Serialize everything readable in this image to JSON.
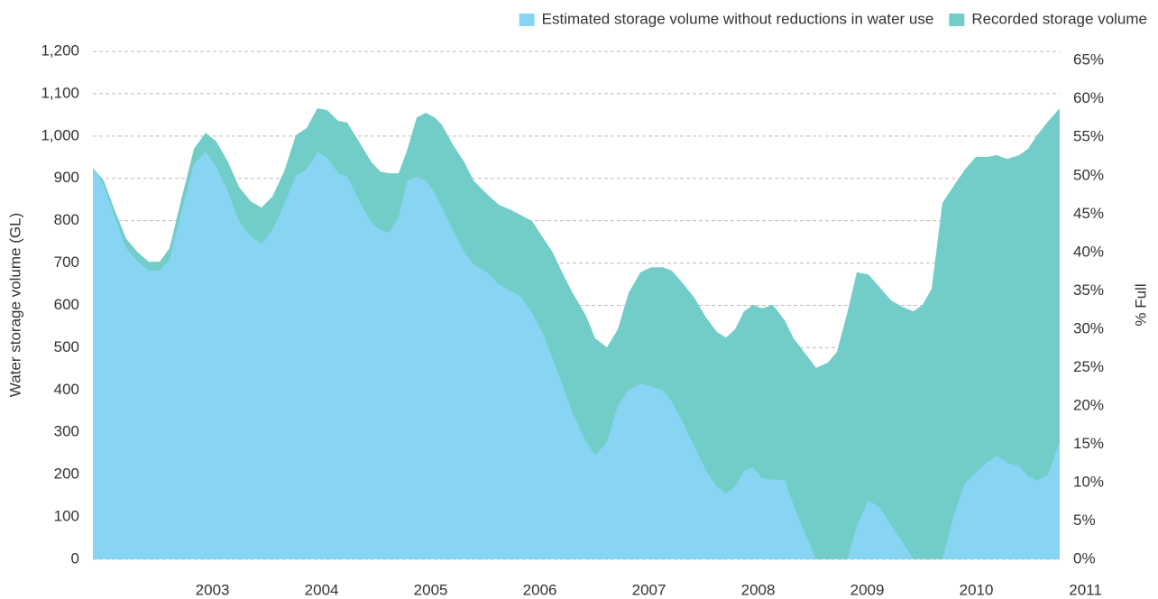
{
  "chart_data": {
    "type": "area",
    "y_label": "Water storage volume (GL)",
    "y2_label": "% Full",
    "x": [
      2002.4,
      2002.499,
      2002.607,
      2002.706,
      2002.813,
      2002.912,
      2003.012,
      2003.102,
      2003.202,
      2003.326,
      2003.433,
      2003.532,
      2003.64,
      2003.739,
      2003.846,
      2003.945,
      2004.045,
      2004.152,
      2004.26,
      2004.359,
      2004.458,
      2004.549,
      2004.648,
      2004.731,
      2004.838,
      2004.954,
      2005.036,
      2005.119,
      2005.202,
      2005.284,
      2005.367,
      2005.45,
      2005.532,
      2005.598,
      2005.698,
      2005.805,
      2005.888,
      2006.012,
      2006.119,
      2006.218,
      2006.317,
      2006.425,
      2006.532,
      2006.615,
      2006.714,
      2006.797,
      2006.921,
      2007.003,
      2007.111,
      2007.21,
      2007.309,
      2007.417,
      2007.516,
      2007.623,
      2007.706,
      2007.813,
      2007.912,
      2008.02,
      2008.119,
      2008.202,
      2008.284,
      2008.367,
      2008.45,
      2008.532,
      2008.631,
      2008.739,
      2008.821,
      2008.929,
      2009.028,
      2009.136,
      2009.218,
      2009.317,
      2009.4,
      2009.507,
      2009.607,
      2009.714,
      2009.813,
      2009.921,
      2010.003,
      2010.086,
      2010.185,
      2010.293,
      2010.392,
      2010.491,
      2010.598,
      2010.681,
      2010.78,
      2010.888,
      2010.97,
      2011.053,
      2011.152,
      2011.26
    ],
    "series": [
      {
        "name": "Estimated storage volume without reductions in water use",
        "color": "#87d5f2",
        "values": [
          925,
          884,
          803,
          735,
          703,
          682,
          682,
          707,
          810,
          934,
          963,
          927,
          867,
          799,
          763,
          746,
          778,
          838,
          906,
          921,
          963,
          948,
          912,
          904,
          848,
          795,
          778,
          772,
          810,
          895,
          904,
          895,
          865,
          831,
          778,
          725,
          697,
          678,
          650,
          635,
          622,
          582,
          529,
          473,
          405,
          345,
          277,
          245,
          277,
          362,
          401,
          414,
          409,
          399,
          373,
          320,
          266,
          209,
          171,
          156,
          171,
          209,
          217,
          192,
          188,
          188,
          128,
          60,
          0,
          0,
          0,
          0,
          79,
          139,
          124,
          81,
          43,
          0,
          0,
          0,
          0,
          107,
          179,
          205,
          230,
          245,
          228,
          220,
          196,
          186,
          200,
          277
        ]
      },
      {
        "name": "Recorded storage volume",
        "color": "#72cdc8",
        "values": [
          925,
          895,
          820,
          757,
          725,
          703,
          703,
          735,
          842,
          970,
          1008,
          987,
          938,
          880,
          846,
          831,
          857,
          916,
          1002,
          1019,
          1066,
          1061,
          1036,
          1032,
          987,
          938,
          916,
          912,
          912,
          970,
          1044,
          1055,
          1044,
          1027,
          980,
          938,
          895,
          863,
          838,
          827,
          814,
          799,
          757,
          725,
          671,
          629,
          575,
          522,
          501,
          543,
          629,
          678,
          690,
          690,
          682,
          650,
          618,
          571,
          537,
          524,
          543,
          586,
          601,
          593,
          601,
          565,
          522,
          486,
          452,
          465,
          490,
          586,
          678,
          673,
          644,
          612,
          597,
          586,
          601,
          639,
          842,
          884,
          921,
          951,
          951,
          955,
          946,
          955,
          970,
          1002,
          1034,
          1066
        ]
      }
    ],
    "xlim": [
      2002.4,
      2011.26
    ],
    "xticks": [
      2003,
      2004,
      2005,
      2006,
      2007,
      2008,
      2009,
      2010,
      2011
    ],
    "ylim": [
      0,
      1200
    ],
    "yticks": [
      0,
      100,
      200,
      300,
      400,
      500,
      600,
      700,
      800,
      900,
      {
        "value": 1000,
        "label": "1,000"
      },
      {
        "value": 1100,
        "label": "1,100"
      },
      {
        "value": 1200,
        "label": "1,200"
      }
    ],
    "y2lim": [
      0,
      66.2
    ],
    "y2ticks": [
      {
        "value": 0,
        "label": "0%"
      },
      {
        "value": 5,
        "label": "5%"
      },
      {
        "value": 10,
        "label": "10%"
      },
      {
        "value": 15,
        "label": "15%"
      },
      {
        "value": 20,
        "label": "20%"
      },
      {
        "value": 25,
        "label": "25%"
      },
      {
        "value": 30,
        "label": "30%"
      },
      {
        "value": 35,
        "label": "35%"
      },
      {
        "value": 40,
        "label": "40%"
      },
      {
        "value": 45,
        "label": "45%"
      },
      {
        "value": 50,
        "label": "50%"
      },
      {
        "value": 55,
        "label": "55%"
      },
      {
        "value": 60,
        "label": "60%"
      },
      {
        "value": 65,
        "label": "65%"
      }
    ],
    "grid": true,
    "legend": "top-right"
  }
}
